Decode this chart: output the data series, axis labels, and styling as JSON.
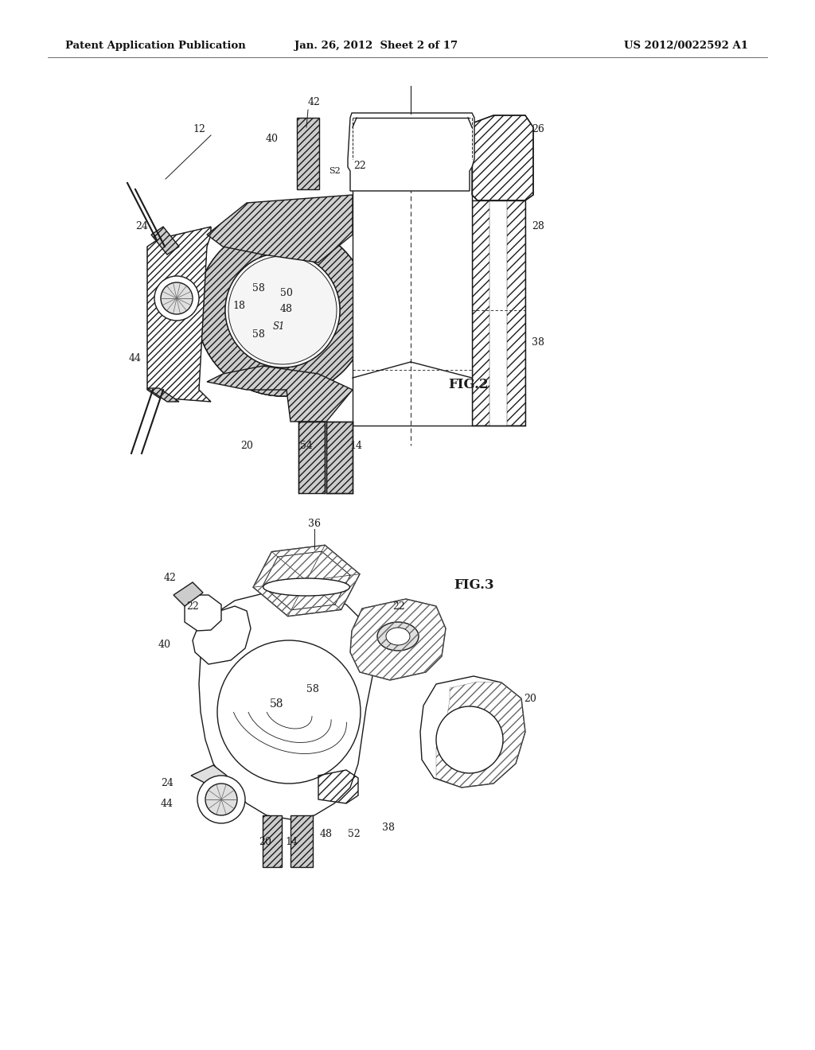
{
  "bg_color": "#ffffff",
  "header_left": "Patent Application Publication",
  "header_center": "Jan. 26, 2012  Sheet 2 of 17",
  "header_right": "US 2012/0022592 A1",
  "fig2_label": "FIG.2",
  "fig3_label": "FIG.3",
  "line_color": "#1a1a1a",
  "hatch_color": "#555555",
  "fill_color": "#f8f8f8",
  "hatch_fill": "#e0e0e0"
}
